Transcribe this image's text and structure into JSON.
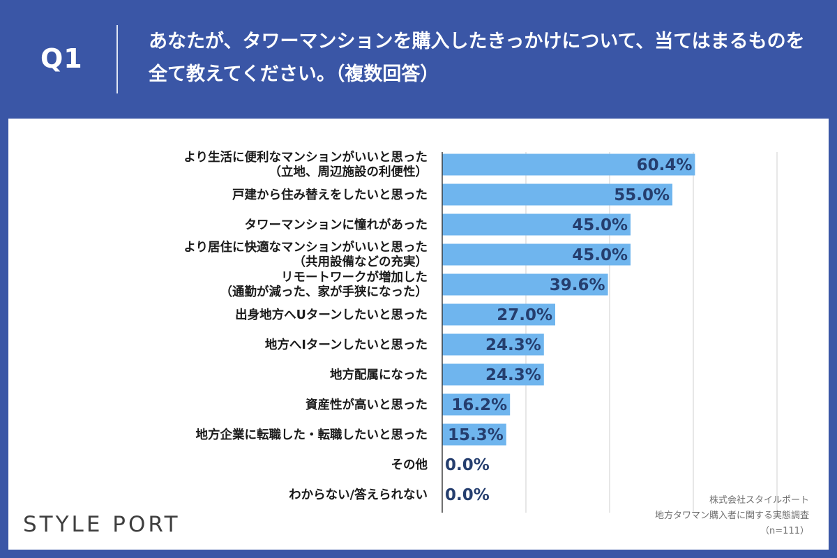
{
  "header": {
    "q_label": "Q1",
    "question": "あなたが、タワーマンションを購入したきっかけについて、当てはまるものを全て教えてください。（複数回答）"
  },
  "colors": {
    "background": "#3a56a6",
    "bar": "#6fb5ee",
    "gridline": "#cfcfcf",
    "value_text": "#253e6e",
    "label_text": "#1a1a1a"
  },
  "chart_data": {
    "type": "bar",
    "orientation": "horizontal",
    "unit": "%",
    "xlim": [
      0,
      80
    ],
    "grid": true,
    "categories": [
      [
        "より生活に便利なマンションがいいと思った",
        "（立地、周辺施設の利便性）"
      ],
      [
        "戸建から住み替えをしたいと思った"
      ],
      [
        "タワーマンションに憧れがあった"
      ],
      [
        "より居住に快適なマンションがいいと思った",
        "（共用設備などの充実）"
      ],
      [
        "リモートワークが増加した",
        "（通勤が減った、家が手狭になった）"
      ],
      [
        "出身地方へUターンしたいと思った"
      ],
      [
        "地方へIターンしたいと思った"
      ],
      [
        "地方配属になった"
      ],
      [
        "資産性が高いと思った"
      ],
      [
        "地方企業に転職した・転職したいと思った"
      ],
      [
        "その他"
      ],
      [
        "わからない/答えられない"
      ]
    ],
    "values": [
      60.4,
      55.0,
      45.0,
      45.0,
      39.6,
      27.0,
      24.3,
      24.3,
      16.2,
      15.3,
      0.0,
      0.0
    ],
    "value_labels": [
      "60.4%",
      "55.0%",
      "45.0%",
      "45.0%",
      "39.6%",
      "27.0%",
      "24.3%",
      "24.3%",
      "16.2%",
      "15.3%",
      "0.0%",
      "0.0%"
    ]
  },
  "footer": {
    "logo": "STYLE PORT",
    "source_lines": [
      "株式会社スタイルポート",
      "地方タワマン購入者に関する実態調査",
      "（n=111）"
    ]
  }
}
